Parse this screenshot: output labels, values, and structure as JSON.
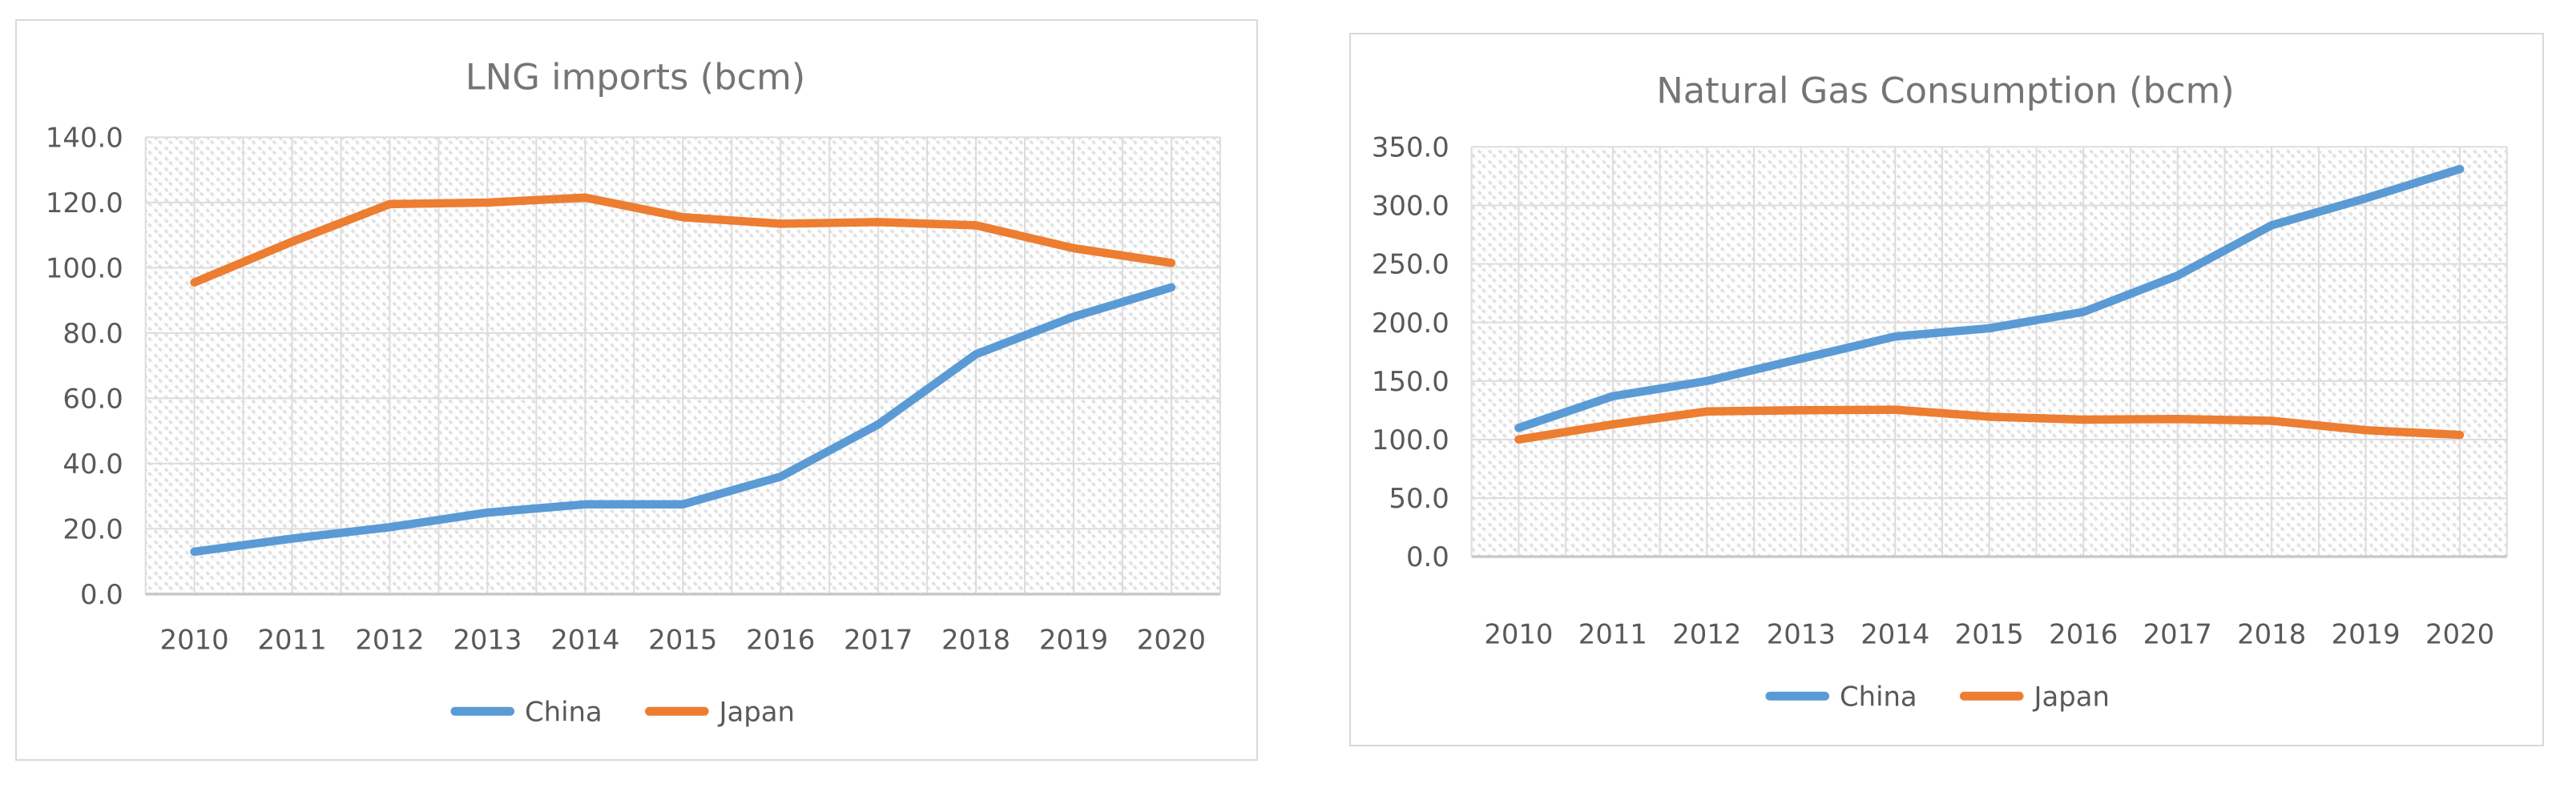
{
  "page": {
    "background": "#ffffff"
  },
  "styles": {
    "title_color": "#757575",
    "label_color": "#595959",
    "gridline_color": "#dcdcdc",
    "axis_line_color": "#c8c8c8",
    "hatch_color": "#e1e1e1",
    "card_border_color": "#d9d9d9",
    "china_color": "#5B9BD5",
    "japan_color": "#ED7D31"
  },
  "chart_data": [
    {
      "type": "line",
      "title": "LNG imports (bcm)",
      "categories": [
        "2010",
        "2011",
        "2012",
        "2013",
        "2014",
        "2015",
        "2016",
        "2017",
        "2018",
        "2019",
        "2020"
      ],
      "series": [
        {
          "name": "China",
          "color": "#5B9BD5",
          "values": [
            13,
            17,
            20.5,
            25,
            27.5,
            27.5,
            36,
            52,
            73.5,
            85,
            94
          ]
        },
        {
          "name": "Japan",
          "color": "#ED7D31",
          "values": [
            95.5,
            108,
            119.5,
            120,
            121.5,
            115.5,
            113.5,
            114,
            113,
            106,
            101.5
          ]
        }
      ],
      "xlabel": "",
      "ylabel": "",
      "ylim": [
        0,
        140
      ],
      "ystep": 20,
      "y_tick_labels": [
        "0.0",
        "20.0",
        "40.0",
        "60.0",
        "80.0",
        "100.0",
        "120.0",
        "140.0"
      ],
      "grid": true,
      "plot_background": "diagonal-hatch",
      "legend_position": "bottom",
      "legend": [
        "China",
        "Japan"
      ]
    },
    {
      "type": "line",
      "title": "Natural Gas Consumption (bcm)",
      "categories": [
        "2010",
        "2011",
        "2012",
        "2013",
        "2014",
        "2015",
        "2016",
        "2017",
        "2018",
        "2019",
        "2020"
      ],
      "series": [
        {
          "name": "China",
          "color": "#5B9BD5",
          "values": [
            110,
            137,
            150,
            169,
            188,
            195,
            209,
            240,
            283,
            306,
            331
          ]
        },
        {
          "name": "Japan",
          "color": "#ED7D31",
          "values": [
            100,
            113,
            124,
            125,
            125.5,
            119.5,
            117,
            117.5,
            116,
            108,
            104
          ]
        }
      ],
      "xlabel": "",
      "ylabel": "",
      "ylim": [
        0,
        350
      ],
      "ystep": 50,
      "y_tick_labels": [
        "0.0",
        "50.0",
        "100.0",
        "150.0",
        "200.0",
        "250.0",
        "300.0",
        "350.0"
      ],
      "grid": true,
      "plot_background": "diagonal-hatch",
      "legend_position": "bottom",
      "legend": [
        "China",
        "Japan"
      ]
    }
  ]
}
